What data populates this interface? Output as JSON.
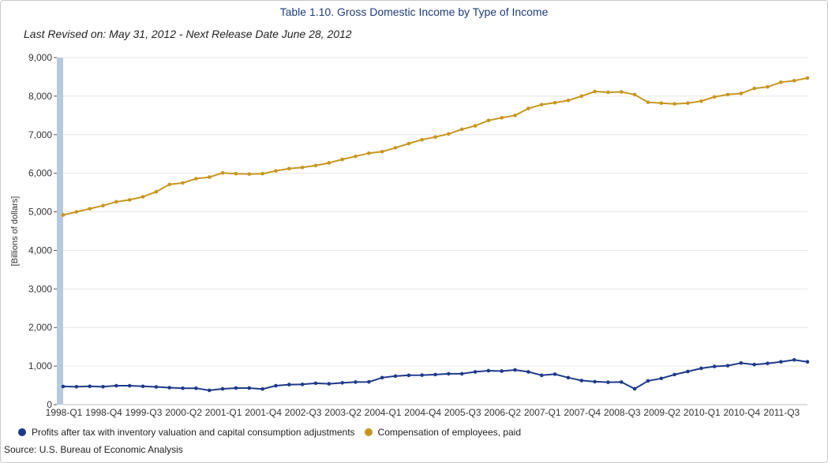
{
  "chart_data": {
    "type": "line",
    "title": "Table 1.10. Gross Domestic Income by Type of Income",
    "subtitle": "Last Revised on: May 31, 2012 - Next Release Date June 28, 2012",
    "source": "Source: U.S. Bureau of Economic Analysis",
    "ylabel": "[Billions of dollars]",
    "xlabel": "",
    "ylim": [
      0,
      9000
    ],
    "yticks": [
      0,
      1000,
      2000,
      3000,
      4000,
      5000,
      6000,
      7000,
      8000,
      9000
    ],
    "ytick_labels": [
      "0",
      "1,000",
      "2,000",
      "3,000",
      "4,000",
      "5,000",
      "6,000",
      "7,000",
      "8,000",
      "9,000"
    ],
    "xtick_labels": [
      {
        "index": 0,
        "label": "1998-Q1"
      },
      {
        "index": 3,
        "label": "1998-Q4"
      },
      {
        "index": 6,
        "label": "1999-Q3"
      },
      {
        "index": 9,
        "label": "2000-Q2"
      },
      {
        "index": 12,
        "label": "2001-Q1"
      },
      {
        "index": 15,
        "label": "2001-Q4"
      },
      {
        "index": 18,
        "label": "2002-Q3"
      },
      {
        "index": 21,
        "label": "2003-Q2"
      },
      {
        "index": 24,
        "label": "2004-Q1"
      },
      {
        "index": 27,
        "label": "2004-Q4"
      },
      {
        "index": 30,
        "label": "2005-Q3"
      },
      {
        "index": 33,
        "label": "2006-Q2"
      },
      {
        "index": 36,
        "label": "2007-Q1"
      },
      {
        "index": 39,
        "label": "2007-Q4"
      },
      {
        "index": 42,
        "label": "2008-Q3"
      },
      {
        "index": 45,
        "label": "2009-Q2"
      },
      {
        "index": 48,
        "label": "2010-Q1"
      },
      {
        "index": 51,
        "label": "2010-Q4"
      },
      {
        "index": 54,
        "label": "2011-Q3"
      }
    ],
    "n_points": 57,
    "series": [
      {
        "name": "Profits after tax with inventory valuation and capital consumption adjustments",
        "color": "#1f3a8a",
        "values": [
          470,
          465,
          475,
          465,
          490,
          490,
          475,
          460,
          440,
          425,
          425,
          370,
          410,
          430,
          430,
          405,
          490,
          520,
          525,
          555,
          540,
          565,
          585,
          590,
          700,
          740,
          760,
          765,
          780,
          800,
          800,
          850,
          880,
          870,
          900,
          850,
          760,
          790,
          700,
          625,
          595,
          580,
          585,
          410,
          615,
          680,
          780,
          860,
          940,
          990,
          1010,
          1080,
          1040,
          1070,
          1110,
          1160,
          1110
        ]
      },
      {
        "name": "Compensation of employees, paid",
        "color": "#c8961e",
        "values": [
          4920,
          5000,
          5080,
          5160,
          5260,
          5310,
          5390,
          5520,
          5710,
          5750,
          5860,
          5900,
          6010,
          5990,
          5980,
          5990,
          6060,
          6120,
          6150,
          6200,
          6270,
          6360,
          6440,
          6520,
          6560,
          6660,
          6770,
          6870,
          6940,
          7020,
          7140,
          7230,
          7370,
          7440,
          7500,
          7680,
          7780,
          7830,
          7890,
          8000,
          8120,
          8100,
          8110,
          8040,
          7840,
          7820,
          7800,
          7820,
          7870,
          7980,
          8040,
          8070,
          8200,
          8240,
          8360,
          8400,
          8470
        ]
      }
    ]
  }
}
